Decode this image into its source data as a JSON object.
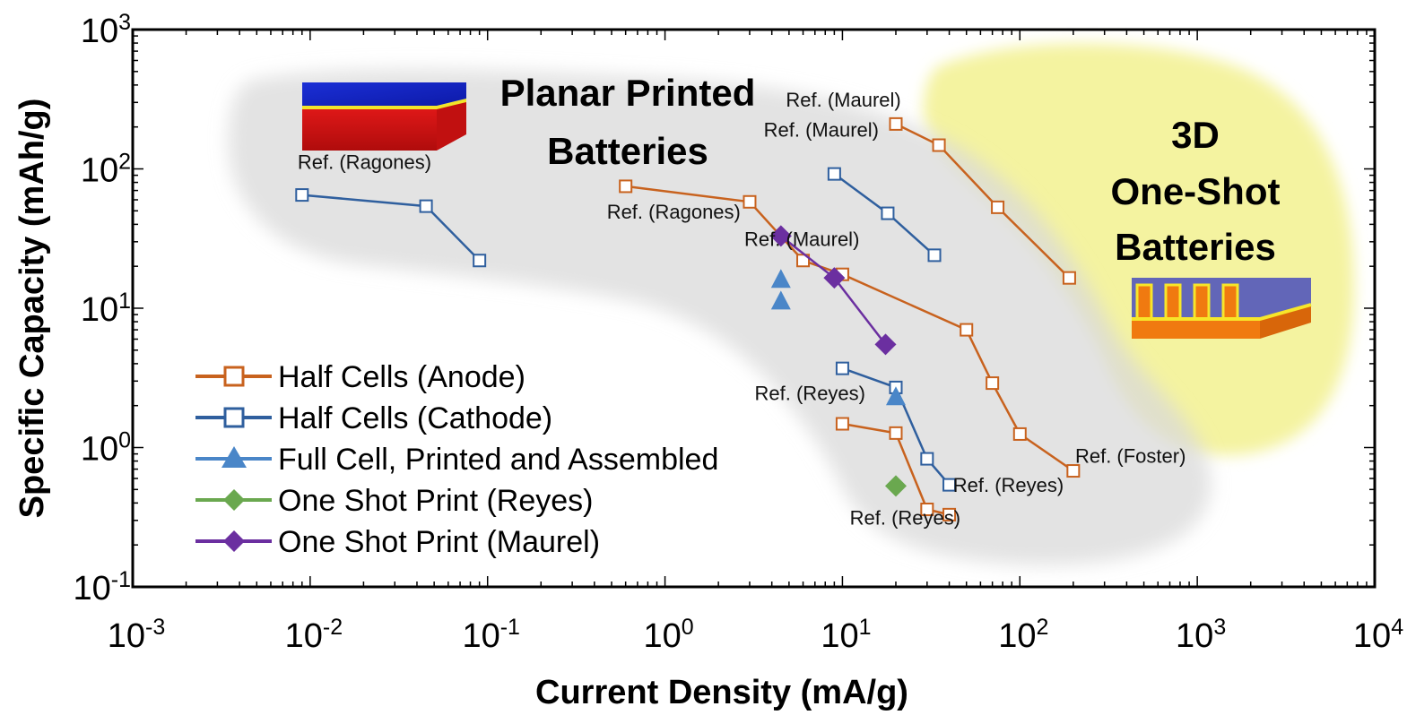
{
  "chart_data": {
    "type": "scatter",
    "xscale": "log",
    "yscale": "log",
    "xlim": [
      0.001,
      10000
    ],
    "ylim": [
      0.1,
      1000
    ],
    "xlabel": "Current Density (mA/g)",
    "ylabel": "Specific Capacity (mAh/g)",
    "x_ticks": [
      {
        "base": "10",
        "exp": "-3",
        "value": 0.001
      },
      {
        "base": "10",
        "exp": "-2",
        "value": 0.01
      },
      {
        "base": "10",
        "exp": "-1",
        "value": 0.1
      },
      {
        "base": "10",
        "exp": "0",
        "value": 1
      },
      {
        "base": "10",
        "exp": "1",
        "value": 10
      },
      {
        "base": "10",
        "exp": "2",
        "value": 100
      },
      {
        "base": "10",
        "exp": "3",
        "value": 1000
      },
      {
        "base": "10",
        "exp": "4",
        "value": 10000
      }
    ],
    "y_ticks": [
      {
        "base": "10",
        "exp": "-1",
        "value": 0.1
      },
      {
        "base": "10",
        "exp": "0",
        "value": 1
      },
      {
        "base": "10",
        "exp": "1",
        "value": 10
      },
      {
        "base": "10",
        "exp": "2",
        "value": 100
      },
      {
        "base": "10",
        "exp": "3",
        "value": 1000
      }
    ],
    "grid": false,
    "legend_position": "bottom-left",
    "legend": [
      {
        "label": "Half Cells (Anode)",
        "marker": "open-square",
        "color": "#c8621e",
        "line": true
      },
      {
        "label": "Half Cells (Cathode)",
        "marker": "open-square",
        "color": "#2f5f9e",
        "line": true
      },
      {
        "label": "Full Cell, Printed and Assembled",
        "marker": "triangle",
        "color": "#4a86c8",
        "line": true
      },
      {
        "label": "One Shot Print (Reyes)",
        "marker": "diamond",
        "color": "#6aa84f",
        "line": true
      },
      {
        "label": "One Shot Print (Maurel)",
        "marker": "diamond",
        "color": "#6b2fa0",
        "line": true
      }
    ],
    "series": [
      {
        "group": "Half Cells (Anode)",
        "marker": "open-square",
        "color": "#c8621e",
        "points": [
          [
            0.6,
            75
          ],
          [
            3,
            58
          ],
          [
            6,
            22
          ],
          [
            10,
            17.5
          ],
          [
            50,
            7
          ],
          [
            70,
            2.9
          ],
          [
            100,
            1.25
          ],
          [
            200,
            0.68
          ]
        ]
      },
      {
        "group": "Half Cells (Anode)",
        "marker": "open-square",
        "color": "#c8621e",
        "points": [
          [
            20,
            210
          ],
          [
            35,
            148
          ],
          [
            75,
            53
          ],
          [
            190,
            16.5
          ]
        ]
      },
      {
        "group": "Half Cells (Anode)",
        "marker": "open-square",
        "color": "#c8621e",
        "points": [
          [
            10,
            1.48
          ],
          [
            20,
            1.27
          ],
          [
            30,
            0.36
          ],
          [
            40,
            0.33
          ]
        ]
      },
      {
        "group": "Half Cells (Cathode)",
        "marker": "open-square",
        "color": "#2f5f9e",
        "points": [
          [
            0.009,
            65
          ],
          [
            0.045,
            54
          ],
          [
            0.09,
            22
          ]
        ]
      },
      {
        "group": "Half Cells (Cathode)",
        "marker": "open-square",
        "color": "#2f5f9e",
        "points": [
          [
            9,
            92
          ],
          [
            18,
            48
          ],
          [
            33,
            24
          ]
        ]
      },
      {
        "group": "Half Cells (Cathode)",
        "marker": "open-square",
        "color": "#2f5f9e",
        "points": [
          [
            10,
            3.7
          ],
          [
            20,
            2.7
          ],
          [
            30,
            0.83
          ],
          [
            40,
            0.54
          ]
        ]
      },
      {
        "group": "Full Cell, Printed and Assembled",
        "marker": "triangle",
        "color": "#4a86c8",
        "points": [
          [
            4.5,
            16
          ],
          [
            4.5,
            11.2
          ],
          [
            20,
            2.3
          ]
        ]
      },
      {
        "group": "One Shot Print (Reyes)",
        "marker": "diamond",
        "color": "#6aa84f",
        "points": [
          [
            20,
            0.53
          ]
        ]
      },
      {
        "group": "One Shot Print (Maurel)",
        "marker": "diamond",
        "color": "#6b2fa0",
        "points": [
          [
            4.5,
            33
          ],
          [
            9,
            16.5
          ],
          [
            17.5,
            5.5
          ]
        ]
      }
    ],
    "annotations": [
      {
        "text": "Ref. (Ragones)",
        "x": 0.0085,
        "y": 100
      },
      {
        "text": "Ref. (Ragones)",
        "x": 0.47,
        "y": 44
      },
      {
        "text": "Ref. (Maurel)",
        "x": 2.8,
        "y": 28
      },
      {
        "text": "Ref. (Maurel)",
        "x": 3.6,
        "y": 170
      },
      {
        "text": "Ref. (Maurel)",
        "x": 4.8,
        "y": 280
      },
      {
        "text": "Ref. (Reyes)",
        "x": 3.2,
        "y": 2.2
      },
      {
        "text": "Ref. (Reyes)",
        "x": 42,
        "y": 0.48
      },
      {
        "text": "Ref. (Reyes)",
        "x": 11,
        "y": 0.28
      },
      {
        "text": "Ref. (Foster)",
        "x": 205,
        "y": 0.78
      }
    ],
    "regions": [
      {
        "name": "planar",
        "lines": [
          "Planar Printed",
          "Batteries"
        ],
        "color": "#d9d9d9"
      },
      {
        "name": "3d",
        "lines": [
          "3D",
          "One-Shot",
          "Batteries"
        ],
        "color": "#f4f3a0"
      }
    ]
  }
}
